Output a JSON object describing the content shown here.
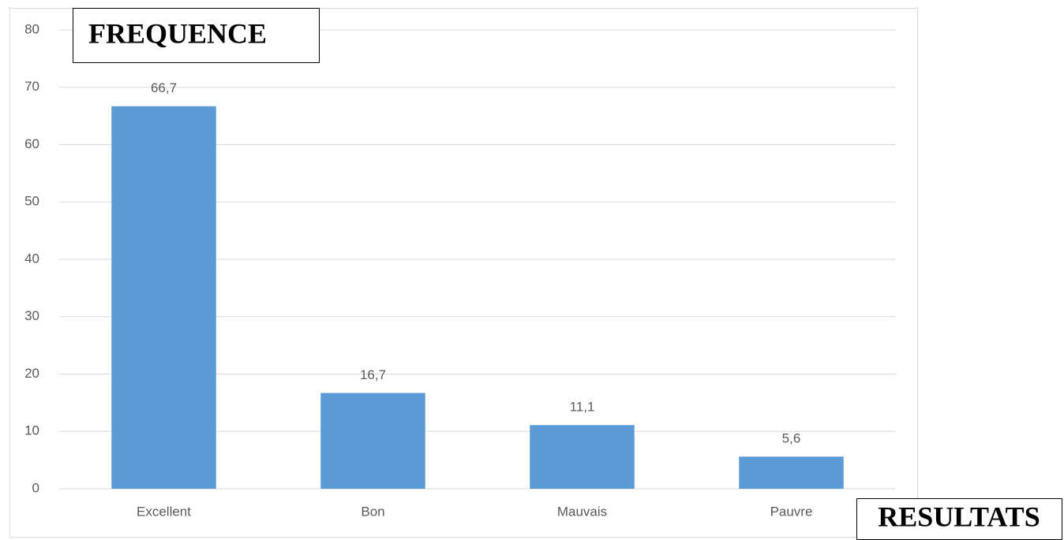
{
  "chart_data": {
    "type": "bar",
    "y_label": "FREQUENCE",
    "x_label": "RESULTATS",
    "categories": [
      "Excellent",
      "Bon",
      "Mauvais",
      "Pauvre"
    ],
    "values": [
      66.7,
      16.7,
      11.1,
      5.6
    ],
    "value_labels": [
      "66,7",
      "16,7",
      "11,1",
      "5,6"
    ],
    "color": "#5b9bd5",
    "ylim": [
      0,
      80
    ],
    "yticks": [
      0,
      10,
      20,
      30,
      40,
      50,
      60,
      70,
      80
    ],
    "grid": true
  }
}
